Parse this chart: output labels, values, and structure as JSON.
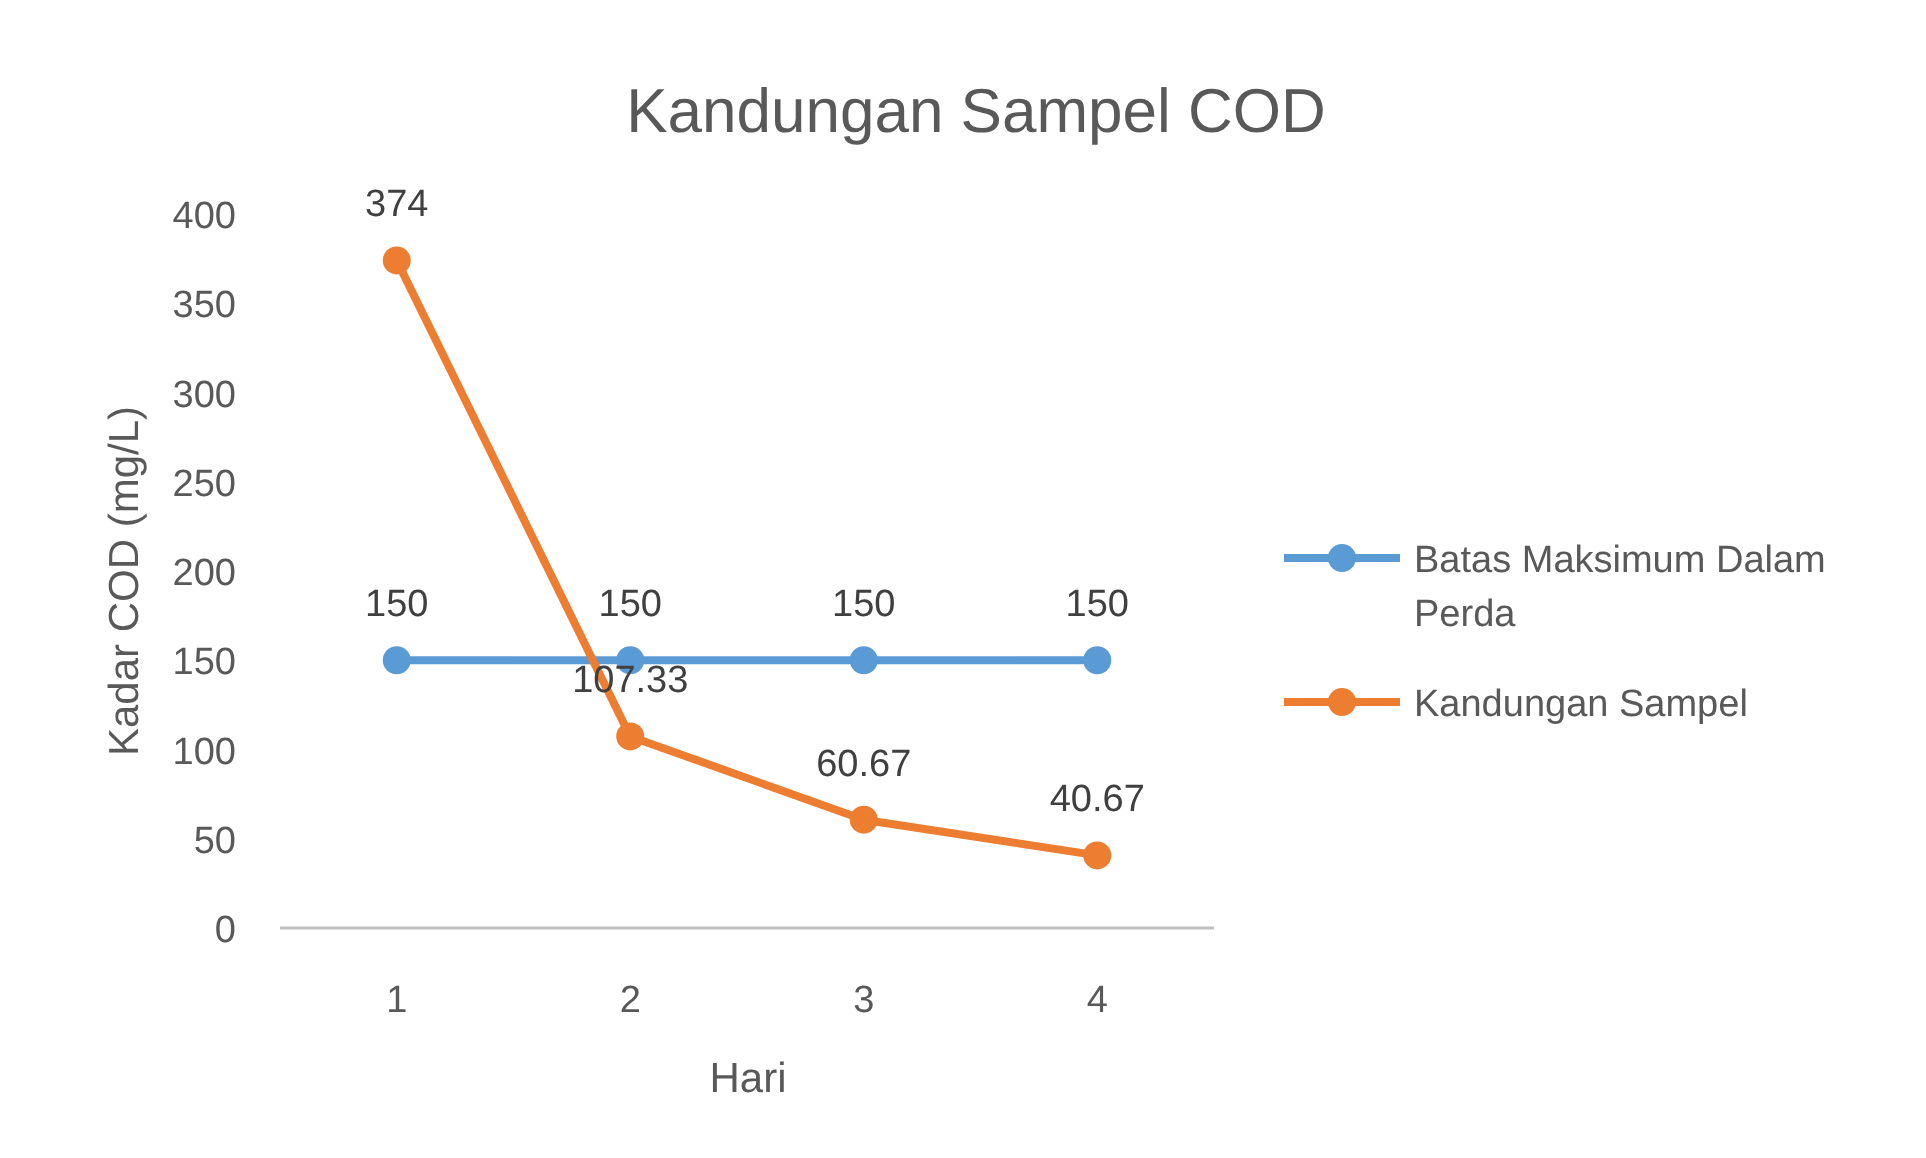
{
  "chart_data": {
    "type": "line",
    "title": "Kandungan Sampel COD",
    "xlabel": "Hari",
    "ylabel": "Kadar COD (mg/L)",
    "categories": [
      "1",
      "2",
      "3",
      "4"
    ],
    "series": [
      {
        "name": "Batas Maksimum Dalam Perda",
        "color": "#5b9bd5",
        "values": [
          150,
          150,
          150,
          150
        ]
      },
      {
        "name": "Kandungan Sampel",
        "color": "#ed7d31",
        "values": [
          374,
          107.33,
          60.67,
          40.67
        ]
      }
    ],
    "ylim": [
      0,
      400
    ],
    "yticks": [
      0,
      50,
      100,
      150,
      200,
      250,
      300,
      350,
      400
    ],
    "grid": false,
    "legend": "right",
    "marker": "circle",
    "line_style": "solid",
    "data_labels": true
  }
}
